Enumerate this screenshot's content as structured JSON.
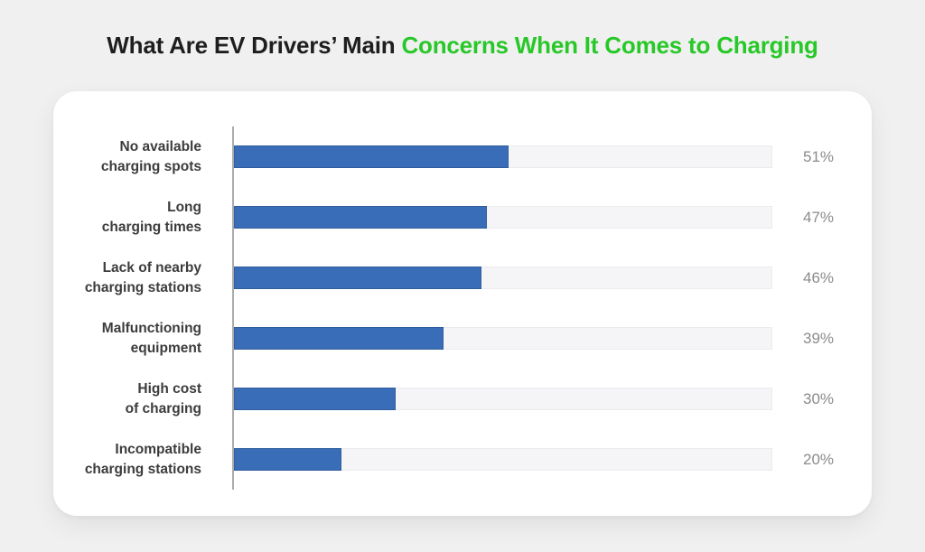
{
  "page": {
    "background_color": "#f0f0f0"
  },
  "title": {
    "part1": "What Are EV Drivers’ Main ",
    "part2": "Concerns When It Comes to Charging",
    "text_color": "#1e1e1e",
    "accent_color": "#28c828"
  },
  "chart_data": {
    "type": "bar",
    "orientation": "horizontal",
    "title": "What Are EV Drivers’ Main Concerns When It Comes to Charging",
    "categories": [
      "No available charging spots",
      "Long charging times",
      "Lack of nearby charging stations",
      "Malfunctioning equipment",
      "High cost of charging",
      "Incompatible charging stations"
    ],
    "values": [
      51,
      47,
      46,
      39,
      30,
      20
    ],
    "value_suffix": "%",
    "xlim": [
      0,
      100
    ],
    "xlabel": "",
    "ylabel": "",
    "grid": false,
    "legend": false,
    "bar_color": "#3a6db7",
    "track_color": "#f5f5f7",
    "value_label_color": "#8b8b8b"
  },
  "rows": [
    {
      "label1": "No available",
      "label2": "charging spots",
      "value": 51,
      "pct": "51%"
    },
    {
      "label1": "Long",
      "label2": "charging times",
      "value": 47,
      "pct": "47%"
    },
    {
      "label1": "Lack of nearby",
      "label2": "charging stations",
      "value": 46,
      "pct": "46%"
    },
    {
      "label1": "Malfunctioning",
      "label2": "equipment",
      "value": 39,
      "pct": "39%"
    },
    {
      "label1": "High cost",
      "label2": "of charging",
      "value": 30,
      "pct": "30%"
    },
    {
      "label1": "Incompatible",
      "label2": "charging stations",
      "value": 20,
      "pct": "20%"
    }
  ]
}
